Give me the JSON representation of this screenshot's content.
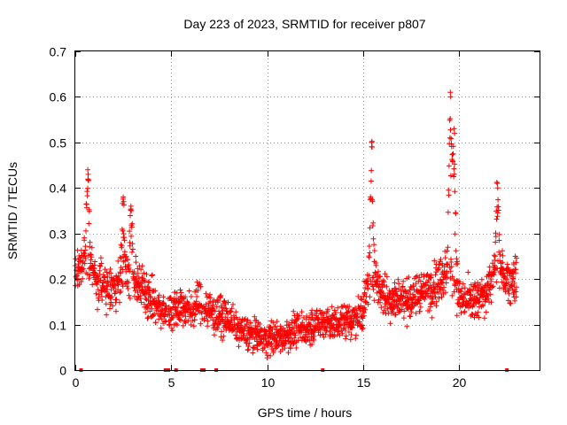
{
  "chart_data": {
    "type": "scatter",
    "title": "Day 223 of 2023, SRMTID for receiver p807",
    "xlabel": "GPS time / hours",
    "ylabel": "SRMTID / TECUs",
    "xlim": [
      0,
      24.2
    ],
    "ylim": [
      0,
      0.7
    ],
    "xticks": [
      0,
      5,
      10,
      15,
      20
    ],
    "xtick_labels": [
      "0",
      "5",
      "10",
      "15",
      "20"
    ],
    "yticks": [
      0,
      0.1,
      0.2,
      0.3,
      0.4,
      0.5,
      0.6,
      0.7
    ],
    "ytick_labels": [
      "0",
      "0.1",
      "0.2",
      "0.3",
      "0.4",
      "0.5",
      "0.6",
      "0.7"
    ],
    "grid": true,
    "marker": "+",
    "color": "#ff0000",
    "sample_interval_hours": 0.015,
    "trend": [
      [
        0.0,
        0.22
      ],
      [
        0.5,
        0.24
      ],
      [
        1.0,
        0.21
      ],
      [
        1.5,
        0.18
      ],
      [
        2.0,
        0.17
      ],
      [
        2.5,
        0.22
      ],
      [
        3.0,
        0.19
      ],
      [
        3.5,
        0.18
      ],
      [
        4.0,
        0.15
      ],
      [
        4.5,
        0.13
      ],
      [
        5.0,
        0.13
      ],
      [
        5.5,
        0.14
      ],
      [
        6.0,
        0.13
      ],
      [
        6.5,
        0.15
      ],
      [
        7.0,
        0.13
      ],
      [
        7.5,
        0.12
      ],
      [
        8.0,
        0.11
      ],
      [
        8.5,
        0.09
      ],
      [
        9.0,
        0.08
      ],
      [
        9.5,
        0.075
      ],
      [
        10.0,
        0.07
      ],
      [
        10.5,
        0.07
      ],
      [
        11.0,
        0.075
      ],
      [
        11.5,
        0.09
      ],
      [
        12.0,
        0.09
      ],
      [
        12.5,
        0.1
      ],
      [
        13.0,
        0.11
      ],
      [
        13.5,
        0.1
      ],
      [
        14.0,
        0.11
      ],
      [
        14.5,
        0.11
      ],
      [
        15.0,
        0.13
      ],
      [
        15.3,
        0.2
      ],
      [
        15.6,
        0.2
      ],
      [
        16.0,
        0.17
      ],
      [
        16.5,
        0.15
      ],
      [
        17.0,
        0.16
      ],
      [
        17.5,
        0.15
      ],
      [
        18.0,
        0.17
      ],
      [
        18.5,
        0.18
      ],
      [
        19.0,
        0.2
      ],
      [
        19.5,
        0.23
      ],
      [
        20.0,
        0.16
      ],
      [
        20.5,
        0.15
      ],
      [
        21.0,
        0.15
      ],
      [
        21.5,
        0.18
      ],
      [
        22.0,
        0.22
      ],
      [
        22.5,
        0.2
      ],
      [
        23.0,
        0.2
      ]
    ],
    "spread": 0.045,
    "data_range": [
      0.0,
      23.0
    ],
    "gaps": [
      [
        4.75,
        4.82
      ],
      [
        6.62,
        6.68
      ],
      [
        8.3,
        8.33
      ]
    ],
    "peaks": [
      {
        "x": 0.65,
        "y": 0.44
      },
      {
        "x": 2.5,
        "y": 0.38
      },
      {
        "x": 2.9,
        "y": 0.36
      },
      {
        "x": 15.45,
        "y": 0.5
      },
      {
        "x": 19.55,
        "y": 0.61
      },
      {
        "x": 19.75,
        "y": 0.53
      },
      {
        "x": 22.0,
        "y": 0.41
      }
    ],
    "zero_markers": [
      0.3,
      4.7,
      4.85,
      5.25,
      6.6,
      6.7,
      7.35,
      12.9,
      22.5
    ]
  }
}
